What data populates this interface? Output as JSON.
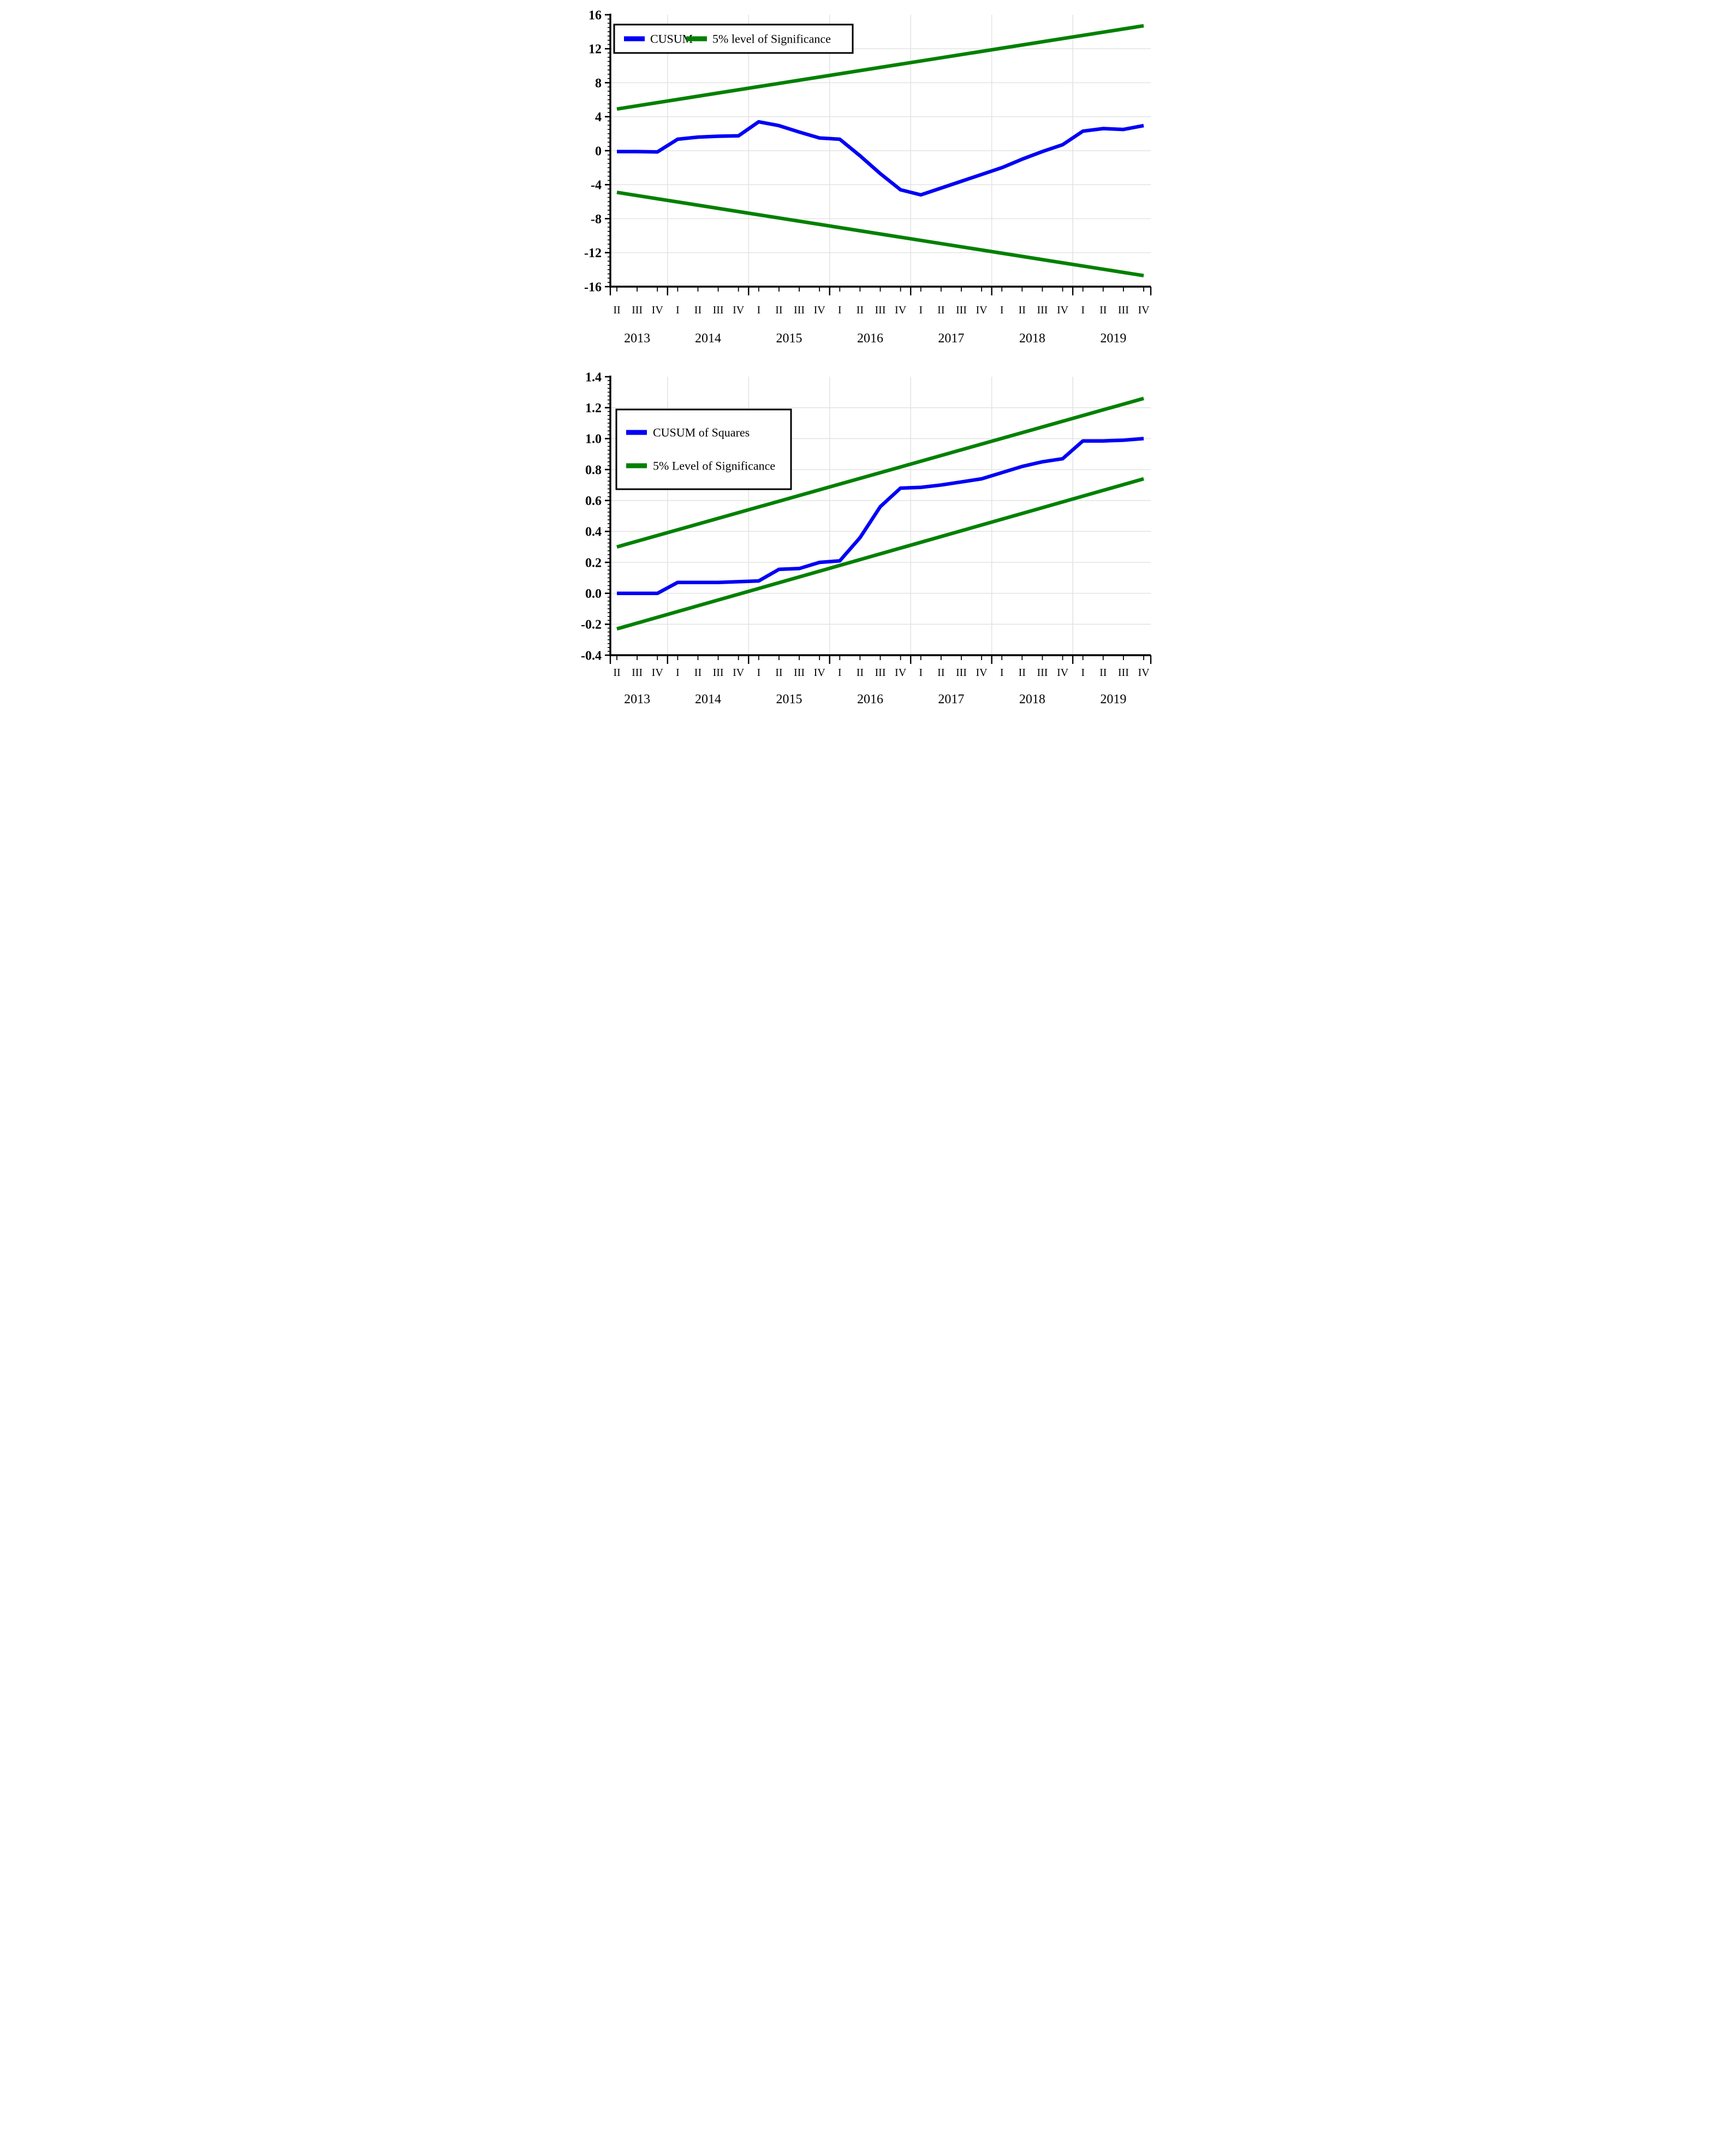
{
  "page": {
    "background": "#ffffff"
  },
  "colors": {
    "cusum_line": "#0000f5",
    "significance_line": "#008000",
    "gridline": "#e4e4e4",
    "axis": "#000000",
    "legend_border": "#000000",
    "legend_background": "#ffffff",
    "text": "#000000"
  },
  "x_axis": {
    "quarters": [
      "II",
      "III",
      "IV",
      "I",
      "II",
      "III",
      "IV",
      "I",
      "II",
      "III",
      "IV",
      "I",
      "II",
      "III",
      "IV",
      "I",
      "II",
      "III",
      "IV",
      "I",
      "II",
      "III",
      "IV",
      "I",
      "II",
      "III",
      "IV"
    ],
    "years": [
      {
        "label": "2013",
        "center_index": 1
      },
      {
        "label": "2014",
        "center_index": 4.5
      },
      {
        "label": "2015",
        "center_index": 8.5
      },
      {
        "label": "2016",
        "center_index": 12.5
      },
      {
        "label": "2017",
        "center_index": 16.5
      },
      {
        "label": "2018",
        "center_index": 20.5
      },
      {
        "label": "2019",
        "center_index": 24.5
      }
    ],
    "year_boundary_indices": [
      2.5,
      6.5,
      10.5,
      14.5,
      18.5,
      22.5
    ]
  },
  "chart_data": [
    {
      "type": "line",
      "title": "",
      "xlabel": "",
      "ylabel": "",
      "grid": true,
      "legend_position": "top-left",
      "legend_layout": "horizontal",
      "legend": [
        {
          "label": "CUSUM",
          "color": "#0000f5"
        },
        {
          "label": "5% level of Significance",
          "color": "#008000"
        }
      ],
      "ylim": [
        -16,
        16
      ],
      "ytick_values": [
        16,
        12,
        8,
        4,
        0,
        -4,
        -8,
        -12,
        -16
      ],
      "ytick_labels": [
        "16",
        "12",
        "8",
        "4",
        "0",
        "-4",
        "-8",
        "-12",
        "-16"
      ],
      "ymajor_step": 4,
      "yminor_step": 0.5,
      "x": [
        "2013Q2",
        "2013Q3",
        "2013Q4",
        "2014Q1",
        "2014Q2",
        "2014Q3",
        "2014Q4",
        "2015Q1",
        "2015Q2",
        "2015Q3",
        "2015Q4",
        "2016Q1",
        "2016Q2",
        "2016Q3",
        "2016Q4",
        "2017Q1",
        "2017Q2",
        "2017Q3",
        "2017Q4",
        "2018Q1",
        "2018Q2",
        "2018Q3",
        "2018Q4",
        "2019Q1",
        "2019Q2",
        "2019Q3",
        "2019Q4"
      ],
      "series": [
        {
          "name": "CUSUM",
          "color": "#0000f5",
          "values": [
            -0.1,
            -0.1,
            -0.15,
            1.35,
            1.6,
            1.7,
            1.75,
            3.4,
            2.95,
            2.2,
            1.5,
            1.35,
            -0.6,
            -2.7,
            -4.6,
            -5.2,
            -4.4,
            -3.6,
            -2.8,
            -2.0,
            -1.0,
            -0.1,
            0.7,
            2.3,
            2.6,
            2.5,
            2.95
          ]
        },
        {
          "name": "5% significance upper bound",
          "color": "#008000",
          "linear": {
            "start": 4.9,
            "end": 14.7
          }
        },
        {
          "name": "5% significance lower bound",
          "color": "#008000",
          "linear": {
            "start": -4.9,
            "end": -14.7
          }
        }
      ]
    },
    {
      "type": "line",
      "title": "",
      "xlabel": "",
      "ylabel": "",
      "grid": true,
      "legend_position": "top-left",
      "legend_layout": "vertical",
      "legend": [
        {
          "label": "CUSUM of Squares",
          "color": "#0000f5"
        },
        {
          "label": "5% Level of Significance",
          "color": "#008000"
        }
      ],
      "ylim": [
        -0.4,
        1.4
      ],
      "ytick_values": [
        1.4,
        1.2,
        1.0,
        0.8,
        0.6,
        0.4,
        0.2,
        0.0,
        -0.2,
        -0.4
      ],
      "ytick_labels": [
        "1.4",
        "1.2",
        "1.0",
        "0.8",
        "0.6",
        "0.4",
        "0.2",
        "0.0",
        "-0.2",
        "-0.4"
      ],
      "ymajor_step": 0.2,
      "yminor_step": 0.025,
      "x": [
        "2013Q2",
        "2013Q3",
        "2013Q4",
        "2014Q1",
        "2014Q2",
        "2014Q3",
        "2014Q4",
        "2015Q1",
        "2015Q2",
        "2015Q3",
        "2015Q4",
        "2016Q1",
        "2016Q2",
        "2016Q3",
        "2016Q4",
        "2017Q1",
        "2017Q2",
        "2017Q3",
        "2017Q4",
        "2018Q1",
        "2018Q2",
        "2018Q3",
        "2018Q4",
        "2019Q1",
        "2019Q2",
        "2019Q3",
        "2019Q4"
      ],
      "series": [
        {
          "name": "CUSUM of Squares",
          "color": "#0000f5",
          "values": [
            0.0,
            0.0,
            0.0,
            0.07,
            0.07,
            0.07,
            0.075,
            0.08,
            0.155,
            0.16,
            0.2,
            0.21,
            0.36,
            0.56,
            0.68,
            0.685,
            0.7,
            0.72,
            0.74,
            0.78,
            0.82,
            0.85,
            0.87,
            0.985,
            0.985,
            0.99,
            1.0
          ]
        },
        {
          "name": "5% significance upper bound",
          "color": "#008000",
          "linear": {
            "start": 0.3,
            "end": 1.26
          }
        },
        {
          "name": "5% significance lower bound",
          "color": "#008000",
          "linear": {
            "start": -0.23,
            "end": 0.74
          }
        }
      ]
    }
  ]
}
